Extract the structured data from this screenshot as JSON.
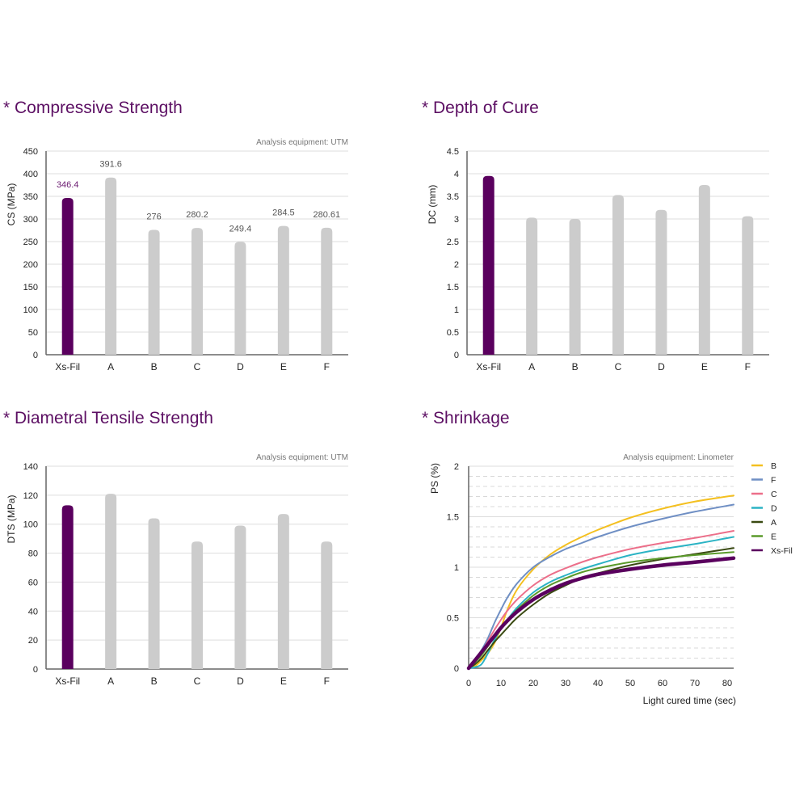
{
  "colors": {
    "accent": "#5a005e",
    "bar_gray": "#cccccc",
    "title": "#5c0f63",
    "grid": "#dddddd",
    "axis": "#666666"
  },
  "chart_data": [
    {
      "id": "cs",
      "type": "bar",
      "title": "* Compressive Strength",
      "note": "Analysis equipment: UTM",
      "ylabel": "CS (MPa)",
      "xlabel": "",
      "ylim": [
        0,
        450
      ],
      "yticks": [
        0,
        50,
        100,
        150,
        200,
        250,
        300,
        350,
        400,
        450
      ],
      "ytick_labels": [
        "0",
        "50",
        "100",
        "150",
        "200",
        "250",
        "300",
        "350",
        "400",
        "450"
      ],
      "grid": true,
      "categories": [
        "Xs-Fil",
        "A",
        "B",
        "C",
        "D",
        "E",
        "F"
      ],
      "values": [
        346.4,
        391.6,
        276,
        280.2,
        249.4,
        284.5,
        280.61
      ],
      "data_labels": [
        "346.4",
        "391.6",
        "276",
        "280.2",
        "249.4",
        "284.5",
        "280.61"
      ]
    },
    {
      "id": "dc",
      "type": "bar",
      "title": "* Depth of Cure",
      "note": "",
      "ylabel": "DC (mm)",
      "xlabel": "",
      "ylim": [
        0,
        4.5
      ],
      "yticks": [
        0,
        0.5,
        1,
        1.5,
        2,
        2.5,
        3,
        3.5,
        4,
        4.5
      ],
      "ytick_labels": [
        "0",
        "0.5",
        "1",
        "1.5",
        "2",
        "2.5",
        "3",
        "3.5",
        "4",
        "4.5"
      ],
      "grid": true,
      "categories": [
        "Xs-Fil",
        "A",
        "B",
        "C",
        "D",
        "E",
        "F"
      ],
      "values": [
        3.95,
        3.03,
        3.0,
        3.53,
        3.2,
        3.75,
        3.06
      ],
      "data_labels": []
    },
    {
      "id": "dts",
      "type": "bar",
      "title": "* Diametral Tensile Strength",
      "note": "Analysis equipment: UTM",
      "ylabel": "DTS (MPa)",
      "xlabel": "",
      "ylim": [
        0,
        140
      ],
      "yticks": [
        0,
        20,
        40,
        60,
        80,
        100,
        120,
        140
      ],
      "ytick_labels": [
        "0",
        "20",
        "40",
        "60",
        "80",
        "100",
        "120",
        "140"
      ],
      "grid": true,
      "categories": [
        "Xs-Fil",
        "A",
        "B",
        "C",
        "D",
        "E",
        "F"
      ],
      "values": [
        113,
        121,
        104,
        88,
        99,
        107,
        88
      ],
      "data_labels": []
    },
    {
      "id": "ps",
      "type": "line",
      "title": "* Shrinkage",
      "note": "Analysis equipment: Linometer",
      "ylabel": "PS (%)",
      "xlabel": "Light cured time (sec)",
      "xlim": [
        0,
        82
      ],
      "ylim": [
        0,
        2
      ],
      "xticks": [
        0,
        10,
        20,
        30,
        40,
        50,
        60,
        70,
        80
      ],
      "xtick_labels": [
        "0",
        "10",
        "20",
        "30",
        "40",
        "50",
        "60",
        "70",
        "80"
      ],
      "yticks": [
        0,
        0.5,
        1,
        1.5,
        2
      ],
      "ytick_labels": [
        "0",
        "0.5",
        "1",
        "1.5",
        "2"
      ],
      "grid": true,
      "legend_position": "right",
      "x": [
        0,
        2,
        4,
        6,
        8,
        10,
        12,
        15,
        20,
        25,
        30,
        35,
        40,
        50,
        60,
        70,
        82
      ],
      "series": [
        {
          "name": "B",
          "color": "#f4c020",
          "width": 2,
          "values": [
            0,
            0.02,
            0.08,
            0.15,
            0.25,
            0.4,
            0.58,
            0.78,
            0.98,
            1.12,
            1.22,
            1.3,
            1.37,
            1.49,
            1.58,
            1.65,
            1.71
          ]
        },
        {
          "name": "F",
          "color": "#6f8fc4",
          "width": 2,
          "values": [
            0,
            0.08,
            0.18,
            0.3,
            0.45,
            0.58,
            0.7,
            0.84,
            1.0,
            1.1,
            1.18,
            1.24,
            1.3,
            1.4,
            1.48,
            1.55,
            1.62
          ]
        },
        {
          "name": "C",
          "color": "#ec6f8a",
          "width": 2,
          "values": [
            0,
            0.07,
            0.16,
            0.27,
            0.38,
            0.48,
            0.57,
            0.68,
            0.82,
            0.92,
            0.99,
            1.05,
            1.1,
            1.18,
            1.24,
            1.29,
            1.36
          ]
        },
        {
          "name": "D",
          "color": "#2bb3c4",
          "width": 2,
          "values": [
            0,
            0.01,
            0.04,
            0.15,
            0.28,
            0.39,
            0.48,
            0.6,
            0.75,
            0.85,
            0.92,
            0.98,
            1.03,
            1.12,
            1.18,
            1.23,
            1.3
          ]
        },
        {
          "name": "A",
          "color": "#3a4a12",
          "width": 2,
          "values": [
            0,
            0.04,
            0.1,
            0.18,
            0.26,
            0.33,
            0.4,
            0.5,
            0.63,
            0.74,
            0.82,
            0.89,
            0.94,
            1.02,
            1.08,
            1.13,
            1.19
          ]
        },
        {
          "name": "E",
          "color": "#5a9a2a",
          "width": 2,
          "values": [
            0,
            0.06,
            0.13,
            0.22,
            0.31,
            0.4,
            0.48,
            0.58,
            0.72,
            0.82,
            0.89,
            0.95,
            0.99,
            1.05,
            1.09,
            1.12,
            1.15
          ]
        },
        {
          "name": "Xs-Fil",
          "color": "#5a005e",
          "width": 4.5,
          "values": [
            0,
            0.08,
            0.16,
            0.24,
            0.32,
            0.4,
            0.47,
            0.56,
            0.68,
            0.77,
            0.84,
            0.89,
            0.93,
            0.98,
            1.02,
            1.05,
            1.09
          ]
        }
      ]
    }
  ]
}
